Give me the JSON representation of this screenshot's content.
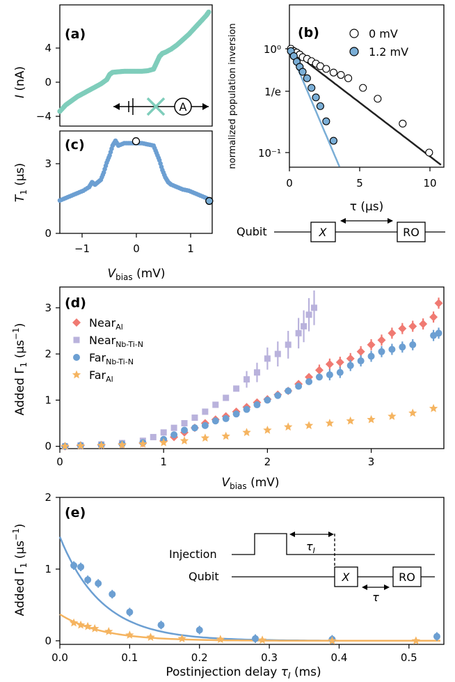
{
  "chart_data": [
    {
      "panel": "(a)",
      "type": "scatter",
      "ylabel": "I (nA)",
      "ylim": [
        -5,
        6.5
      ],
      "xlim": [
        -1.3,
        1.3
      ],
      "yticks": [
        "4",
        "0",
        "−4"
      ],
      "color": "#7fcdbb",
      "x": [
        -1.3,
        -1.2,
        -1.1,
        -1.0,
        -0.9,
        -0.8,
        -0.7,
        -0.6,
        -0.5,
        -0.45,
        -0.4,
        -0.3,
        -0.2,
        -0.1,
        0.0,
        0.1,
        0.2,
        0.3,
        0.35,
        0.4,
        0.45,
        0.5,
        0.6,
        0.7,
        0.8,
        0.9,
        1.0,
        1.1,
        1.2,
        1.25
      ],
      "y": [
        -3.6,
        -3.0,
        -2.6,
        -2.2,
        -1.9,
        -1.6,
        -1.3,
        -1.0,
        -0.6,
        -0.1,
        0.1,
        0.15,
        0.2,
        0.2,
        0.2,
        0.2,
        0.25,
        0.4,
        1.0,
        1.6,
        1.9,
        2.0,
        2.3,
        2.7,
        3.2,
        3.7,
        4.3,
        4.9,
        5.5,
        5.9
      ]
    },
    {
      "panel": "(b)",
      "type": "scatter",
      "xlabel": "τ (µs)",
      "ylabel": "normalized population inversion",
      "xlim": [
        0,
        10.5
      ],
      "ylim": [
        0.07,
        1.4
      ],
      "yscale": "log",
      "xticks": [
        "0",
        "5",
        "10"
      ],
      "yticks": [
        "10⁰",
        "1/e",
        "10⁻¹"
      ],
      "series": [
        {
          "name": "0 mV",
          "x": [
            0.1,
            0.3,
            0.5,
            0.7,
            0.9,
            1.2,
            1.5,
            1.8,
            2.1,
            2.5,
            3.0,
            3.5,
            4.0,
            5.0,
            6.0,
            7.7,
            9.5
          ],
          "y": [
            1.0,
            0.95,
            0.92,
            0.88,
            0.83,
            0.8,
            0.76,
            0.72,
            0.68,
            0.64,
            0.59,
            0.56,
            0.52,
            0.42,
            0.33,
            0.19,
            0.1
          ],
          "fit_tau": 4.0,
          "fit_color": "#222222"
        },
        {
          "name": "1.2 mV",
          "x": [
            0.1,
            0.3,
            0.5,
            0.7,
            0.9,
            1.2,
            1.5,
            1.8,
            2.1,
            2.5,
            3.0
          ],
          "y": [
            0.95,
            0.85,
            0.75,
            0.67,
            0.6,
            0.52,
            0.42,
            0.34,
            0.28,
            0.2,
            0.13
          ],
          "fit_tau": 1.3,
          "fit_color": "#7aaed6",
          "fill": "#7aaed6"
        }
      ]
    },
    {
      "panel": "(c)",
      "type": "scatter",
      "xlabel": "Vbias (mV)",
      "ylabel": "T1 (µs)",
      "xlim": [
        -1.3,
        1.3
      ],
      "ylim": [
        0,
        4.2
      ],
      "xticks": [
        "−1",
        "0",
        "1"
      ],
      "yticks": [
        "3",
        "0"
      ],
      "color": "#6c9fd2",
      "x": [
        -1.3,
        -1.2,
        -1.1,
        -1.0,
        -0.9,
        -0.8,
        -0.75,
        -0.7,
        -0.65,
        -0.6,
        -0.55,
        -0.5,
        -0.45,
        -0.4,
        -0.35,
        -0.3,
        -0.2,
        -0.1,
        0.0,
        0.1,
        0.2,
        0.3,
        0.35,
        0.4,
        0.45,
        0.5,
        0.55,
        0.6,
        0.7,
        0.8,
        0.9,
        1.0,
        1.1,
        1.2,
        1.25
      ],
      "y": [
        1.35,
        1.45,
        1.55,
        1.65,
        1.75,
        1.9,
        2.1,
        2.0,
        2.1,
        2.2,
        2.5,
        2.9,
        3.2,
        3.6,
        3.8,
        3.6,
        3.7,
        3.7,
        3.7,
        3.7,
        3.65,
        3.6,
        3.3,
        3.0,
        2.6,
        2.3,
        2.1,
        2.0,
        1.9,
        1.8,
        1.75,
        1.65,
        1.55,
        1.45,
        1.35
      ],
      "markers": [
        {
          "x": 0.0,
          "y": 3.78
        },
        {
          "x": 1.25,
          "y": 1.33
        }
      ]
    },
    {
      "panel": "(d)",
      "type": "scatter",
      "xlabel": "Vbias (mV)",
      "ylabel": "Added Γ1 (µs⁻¹)",
      "xlim": [
        0,
        3.7
      ],
      "ylim": [
        -0.05,
        3.45
      ],
      "xticks": [
        "0",
        "1",
        "2",
        "3"
      ],
      "yticks": [
        "0",
        "1",
        "2",
        "3"
      ],
      "series": [
        {
          "name": "Near_Al",
          "label": "Near",
          "sub": "Al",
          "marker": "diamond",
          "color": "#f07a72",
          "x": [
            0.05,
            0.2,
            0.4,
            0.6,
            0.8,
            1.0,
            1.1,
            1.2,
            1.3,
            1.4,
            1.5,
            1.6,
            1.7,
            1.8,
            1.9,
            2.0,
            2.1,
            2.2,
            2.3,
            2.4,
            2.5,
            2.6,
            2.7,
            2.8,
            2.9,
            3.0,
            3.1,
            3.2,
            3.3,
            3.4,
            3.5,
            3.6,
            3.65
          ],
          "y": [
            0.0,
            0.02,
            0.03,
            0.05,
            0.07,
            0.12,
            0.2,
            0.3,
            0.4,
            0.5,
            0.58,
            0.65,
            0.75,
            0.85,
            0.95,
            1.02,
            1.12,
            1.2,
            1.35,
            1.5,
            1.65,
            1.78,
            1.82,
            1.9,
            2.05,
            2.2,
            2.3,
            2.45,
            2.55,
            2.6,
            2.65,
            2.8,
            3.1
          ]
        },
        {
          "name": "Near_Nb-Ti-N",
          "label": "Near",
          "sub": "Nb-Ti-N",
          "marker": "square",
          "color": "#b9b2dc",
          "x": [
            0.05,
            0.2,
            0.4,
            0.6,
            0.8,
            0.9,
            1.0,
            1.1,
            1.2,
            1.3,
            1.4,
            1.5,
            1.6,
            1.7,
            1.8,
            1.9,
            2.0,
            2.1,
            2.2,
            2.3,
            2.35,
            2.4,
            2.45
          ],
          "y": [
            0.0,
            0.02,
            0.04,
            0.07,
            0.12,
            0.2,
            0.3,
            0.4,
            0.5,
            0.62,
            0.75,
            0.9,
            1.05,
            1.25,
            1.45,
            1.6,
            1.9,
            2.0,
            2.2,
            2.45,
            2.6,
            2.85,
            3.0
          ]
        },
        {
          "name": "Far_Nb-Ti-N",
          "label": "Far",
          "sub": "Nb-Ti-N",
          "marker": "circle",
          "color": "#6c9fd2",
          "x": [
            0.05,
            0.2,
            0.4,
            0.6,
            0.8,
            1.0,
            1.1,
            1.2,
            1.3,
            1.4,
            1.5,
            1.6,
            1.7,
            1.8,
            1.9,
            2.0,
            2.1,
            2.2,
            2.3,
            2.4,
            2.5,
            2.6,
            2.7,
            2.8,
            2.9,
            3.0,
            3.1,
            3.2,
            3.3,
            3.4,
            3.6,
            3.65
          ],
          "y": [
            0.0,
            0.02,
            0.03,
            0.05,
            0.08,
            0.15,
            0.25,
            0.35,
            0.4,
            0.45,
            0.55,
            0.6,
            0.7,
            0.8,
            0.9,
            1.0,
            1.1,
            1.2,
            1.3,
            1.4,
            1.5,
            1.55,
            1.6,
            1.75,
            1.85,
            1.95,
            2.05,
            2.1,
            2.15,
            2.2,
            2.4,
            2.45
          ]
        },
        {
          "name": "Far_Al",
          "label": "Far",
          "sub": "Al",
          "marker": "star",
          "color": "#f5b460",
          "x": [
            0.05,
            0.2,
            0.4,
            0.6,
            0.8,
            1.0,
            1.2,
            1.4,
            1.6,
            1.8,
            2.0,
            2.2,
            2.4,
            2.6,
            2.8,
            3.0,
            3.2,
            3.4,
            3.6
          ],
          "y": [
            0.0,
            0.01,
            0.02,
            0.03,
            0.05,
            0.08,
            0.12,
            0.18,
            0.22,
            0.3,
            0.35,
            0.42,
            0.45,
            0.5,
            0.55,
            0.58,
            0.65,
            0.72,
            0.82
          ]
        }
      ]
    },
    {
      "panel": "(e)",
      "type": "scatter",
      "xlabel": "Postinjection delay τI (ms)",
      "ylabel": "Added Γ1 (µs⁻¹)",
      "xlim": [
        0,
        0.55
      ],
      "ylim": [
        -0.05,
        2.0
      ],
      "xticks": [
        "0.0",
        "0.1",
        "0.2",
        "0.3",
        "0.4",
        "0.5"
      ],
      "yticks": [
        "2",
        "1",
        "0"
      ],
      "series": [
        {
          "name": "blue",
          "color": "#6c9fd2",
          "marker": "circle",
          "x": [
            0.02,
            0.03,
            0.04,
            0.055,
            0.075,
            0.1,
            0.145,
            0.2,
            0.28,
            0.39,
            0.54
          ],
          "y": [
            1.05,
            1.03,
            0.85,
            0.8,
            0.65,
            0.4,
            0.22,
            0.15,
            0.03,
            0.02,
            0.06
          ],
          "fit_amp": 1.45,
          "fit_tau": 0.06
        },
        {
          "name": "orange",
          "color": "#f5b460",
          "marker": "star",
          "x": [
            0.02,
            0.03,
            0.04,
            0.05,
            0.07,
            0.1,
            0.13,
            0.175,
            0.23,
            0.29,
            0.39,
            0.51
          ],
          "y": [
            0.25,
            0.22,
            0.2,
            0.17,
            0.13,
            0.08,
            0.05,
            0.03,
            0.02,
            0.01,
            0.0,
            0.0
          ],
          "fit_amp": 0.37,
          "fit_tau": 0.06
        }
      ]
    }
  ],
  "panel_labels": {
    "a": "(a)",
    "b": "(b)",
    "c": "(c)",
    "d": "(d)",
    "e": "(e)"
  },
  "legend_b": [
    "0 mV",
    "1.2 mV"
  ],
  "schematic_b": {
    "qubit": "Qubit",
    "x": "X",
    "ro": "RO"
  },
  "schematic_e": {
    "injection": "Injection",
    "tau_i": "τI",
    "qubit": "Qubit",
    "x": "X",
    "ro": "RO",
    "tau": "τ"
  },
  "circuit_a": {
    "ammeter": "A"
  }
}
